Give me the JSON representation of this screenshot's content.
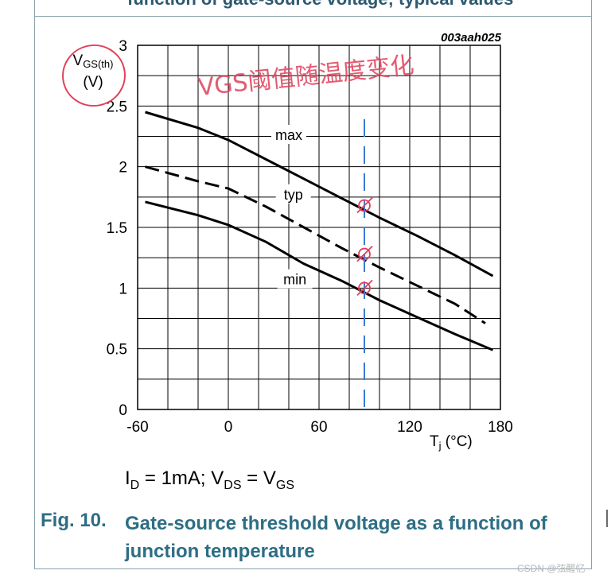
{
  "header_cut_text": "function of gate-source voltage; typical values",
  "chart_data": {
    "type": "line",
    "code": "003aah025",
    "ylabel": {
      "main": "V",
      "sub": "GS(th)",
      "unit": "(V)"
    },
    "xlabel": {
      "main": "T",
      "sub": "j",
      "unit": " (°C)"
    },
    "xlim": [
      -60,
      180
    ],
    "ylim": [
      0,
      3
    ],
    "xticks": [
      -60,
      0,
      60,
      120,
      180
    ],
    "yticks": [
      0,
      0.5,
      1,
      1.5,
      2,
      2.5,
      3
    ],
    "ytick_labels": [
      "0",
      "0.5",
      "1",
      "1.5",
      "2",
      "2.5",
      "3"
    ],
    "grid": true,
    "series": [
      {
        "name": "max",
        "dash": false,
        "label_at": [
          40,
          2.26
        ],
        "points": [
          [
            -55,
            2.45
          ],
          [
            -20,
            2.32
          ],
          [
            0,
            2.22
          ],
          [
            25,
            2.06
          ],
          [
            50,
            1.9
          ],
          [
            75,
            1.74
          ],
          [
            100,
            1.58
          ],
          [
            125,
            1.43
          ],
          [
            150,
            1.27
          ],
          [
            175,
            1.1
          ]
        ]
      },
      {
        "name": "typ",
        "dash": true,
        "label_at": [
          43,
          1.77
        ],
        "points": [
          [
            -55,
            2.0
          ],
          [
            -20,
            1.88
          ],
          [
            0,
            1.82
          ],
          [
            25,
            1.67
          ],
          [
            50,
            1.5
          ],
          [
            75,
            1.33
          ],
          [
            100,
            1.17
          ],
          [
            125,
            1.02
          ],
          [
            150,
            0.87
          ],
          [
            170,
            0.71
          ]
        ]
      },
      {
        "name": "min",
        "dash": false,
        "label_at": [
          44,
          1.07
        ],
        "points": [
          [
            -55,
            1.71
          ],
          [
            -20,
            1.6
          ],
          [
            0,
            1.52
          ],
          [
            25,
            1.38
          ],
          [
            50,
            1.2
          ],
          [
            75,
            1.06
          ],
          [
            100,
            0.9
          ],
          [
            125,
            0.76
          ],
          [
            150,
            0.62
          ],
          [
            175,
            0.49
          ]
        ]
      }
    ]
  },
  "annotations": {
    "handwriting": "VGS阈值随温度变化",
    "marked_x": 90,
    "cross_values": [
      1.68,
      1.28,
      1.0
    ],
    "colors": {
      "pen": "#e0405a",
      "dash_line": "#3a7bd5"
    }
  },
  "conditions": {
    "i_sym": "I",
    "i_sub": "D",
    "i_val": " = 1mA; V",
    "v_sub": "DS",
    "eq": " = V",
    "v2_sub": "GS"
  },
  "caption": {
    "number": "Fig. 10.",
    "text": "Gate-source threshold voltage as a function of junction temperature"
  },
  "watermark": "CSDN @弦醒忆"
}
